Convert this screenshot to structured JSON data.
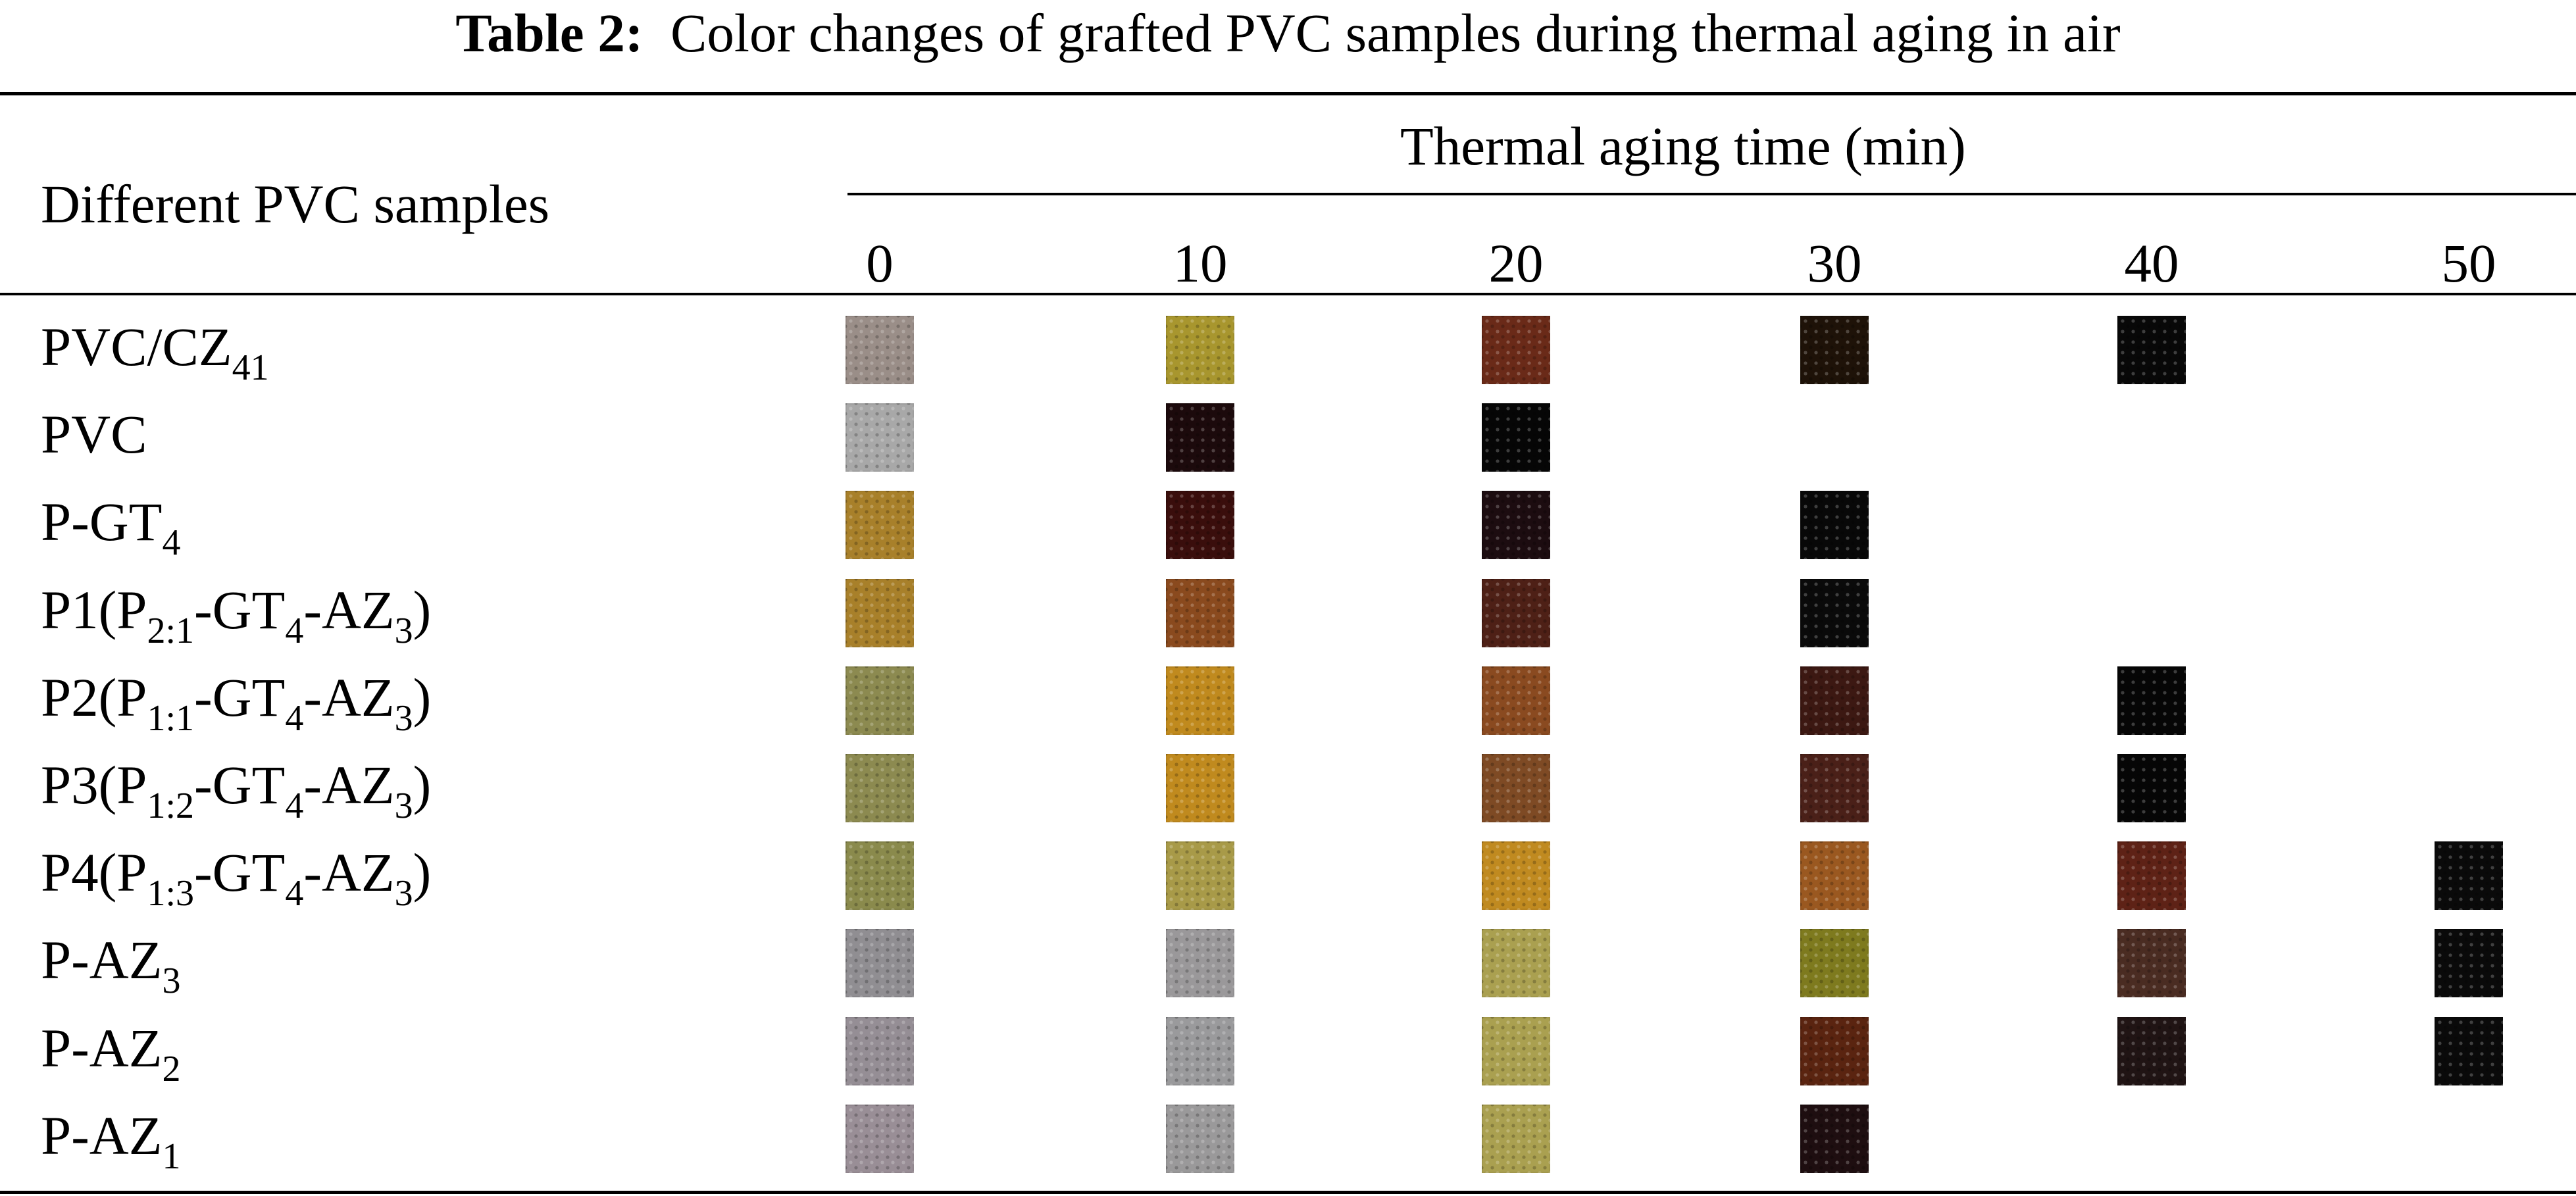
{
  "table": {
    "caption_label": "Table 2:",
    "caption_text": "Color changes of grafted PVC samples during thermal aging in air",
    "row_header": "Different PVC samples",
    "group_header": "Thermal aging time (min)",
    "times": [
      "0",
      "10",
      "20",
      "30",
      "40",
      "50"
    ],
    "rows": [
      {
        "base": "PVC/CZ",
        "parts": [
          [
            "PVC/CZ",
            ""
          ],
          [
            "41",
            "sub"
          ]
        ],
        "swatches": [
          "#9a8e88",
          "#a8962e",
          "#6a2a18",
          "#1e1208",
          "#080808",
          null
        ]
      },
      {
        "base": "PVC",
        "parts": [
          [
            "PVC",
            ""
          ]
        ],
        "swatches": [
          "#a8a8a8",
          "#1c0a0c",
          "#060606",
          null,
          null,
          null
        ]
      },
      {
        "base": "P-GT",
        "parts": [
          [
            "P-GT",
            ""
          ],
          [
            "4",
            "sub"
          ]
        ],
        "swatches": [
          "#a8802a",
          "#3a0e0c",
          "#1c0c10",
          "#080808",
          null,
          null
        ]
      },
      {
        "base": "P1(P",
        "parts": [
          [
            "P1(P",
            ""
          ],
          [
            "2:1",
            "sub"
          ],
          [
            "-GT",
            ""
          ],
          [
            "4",
            "sub"
          ],
          [
            "-AZ",
            ""
          ],
          [
            "3",
            "sub"
          ],
          [
            ")",
            ""
          ]
        ],
        "swatches": [
          "#a8802a",
          "#8a4a1e",
          "#4e2016",
          "#0a0a0a",
          null,
          null
        ]
      },
      {
        "base": "P2(P",
        "parts": [
          [
            "P2(P",
            ""
          ],
          [
            "1:1",
            "sub"
          ],
          [
            "-GT",
            ""
          ],
          [
            "4",
            "sub"
          ],
          [
            "-AZ",
            ""
          ],
          [
            "3",
            "sub"
          ],
          [
            ")",
            ""
          ]
        ],
        "swatches": [
          "#8c8a50",
          "#c08a1e",
          "#8a4a20",
          "#3c1812",
          "#060606",
          null
        ]
      },
      {
        "base": "P3(P",
        "parts": [
          [
            "P3(P",
            ""
          ],
          [
            "1:2",
            "sub"
          ],
          [
            "-GT",
            ""
          ],
          [
            "4",
            "sub"
          ],
          [
            "-AZ",
            ""
          ],
          [
            "3",
            "sub"
          ],
          [
            ")",
            ""
          ]
        ],
        "swatches": [
          "#8c8a50",
          "#c08a1e",
          "#7e4a24",
          "#4a2018",
          "#060606",
          null
        ]
      },
      {
        "base": "P4(P",
        "parts": [
          [
            "P4(P",
            ""
          ],
          [
            "1:3",
            "sub"
          ],
          [
            "-GT",
            ""
          ],
          [
            "4",
            "sub"
          ],
          [
            "-AZ",
            ""
          ],
          [
            "3",
            "sub"
          ],
          [
            ")",
            ""
          ]
        ],
        "swatches": [
          "#8a8a4c",
          "#a89a48",
          "#c08a20",
          "#9a5820",
          "#5e2216",
          "#0a0a0a"
        ]
      },
      {
        "base": "P-AZ",
        "parts": [
          [
            "P-AZ",
            ""
          ],
          [
            "3",
            "sub"
          ]
        ],
        "swatches": [
          "#908e92",
          "#9a989a",
          "#aaa050",
          "#7e7a1e",
          "#4a2c22",
          "#0a0a0a"
        ]
      },
      {
        "base": "P-AZ",
        "parts": [
          [
            "P-AZ",
            ""
          ],
          [
            "2",
            "sub"
          ]
        ],
        "swatches": [
          "#958e95",
          "#9a9a9c",
          "#aaa050",
          "#5a2410",
          "#201414",
          "#0a0a0a"
        ]
      },
      {
        "base": "P-AZ",
        "parts": [
          [
            "P-AZ",
            ""
          ],
          [
            "1",
            "sub"
          ]
        ],
        "swatches": [
          "#998e96",
          "#9a999a",
          "#aaa050",
          "#1e0e10",
          null,
          null
        ]
      }
    ]
  }
}
